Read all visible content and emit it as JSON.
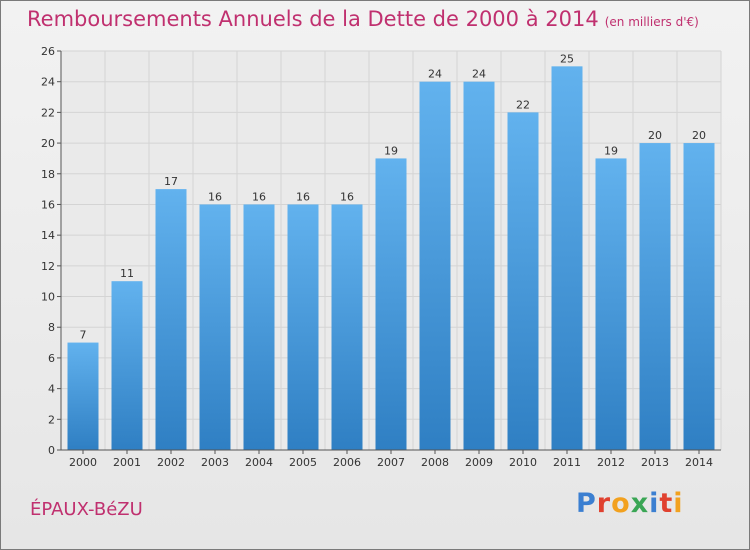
{
  "title": "Remboursements Annuels de la Dette de 2000 à 2014",
  "subtitle": "(en milliers d'€)",
  "town": "ÉPAUX-BéZU",
  "logo": [
    "P",
    "r",
    "o",
    "x",
    "i",
    "t",
    "i"
  ],
  "colors": {
    "bar_light": "#62b2ee",
    "bar_dark": "#2f7fc3",
    "title": "#c0306f",
    "grid": "#d7d7d7"
  },
  "chart_data": {
    "type": "bar",
    "categories": [
      "2000",
      "2001",
      "2002",
      "2003",
      "2004",
      "2005",
      "2006",
      "2007",
      "2008",
      "2009",
      "2010",
      "2011",
      "2012",
      "2013",
      "2014"
    ],
    "values": [
      7,
      11,
      17,
      16,
      16,
      16,
      16,
      19,
      24,
      24,
      22,
      25,
      19,
      20,
      20
    ],
    "ylim": [
      0,
      26
    ],
    "yticks": [
      0,
      2,
      4,
      6,
      8,
      10,
      12,
      14,
      16,
      18,
      20,
      22,
      24,
      26
    ],
    "grid": true,
    "legend": "none"
  }
}
